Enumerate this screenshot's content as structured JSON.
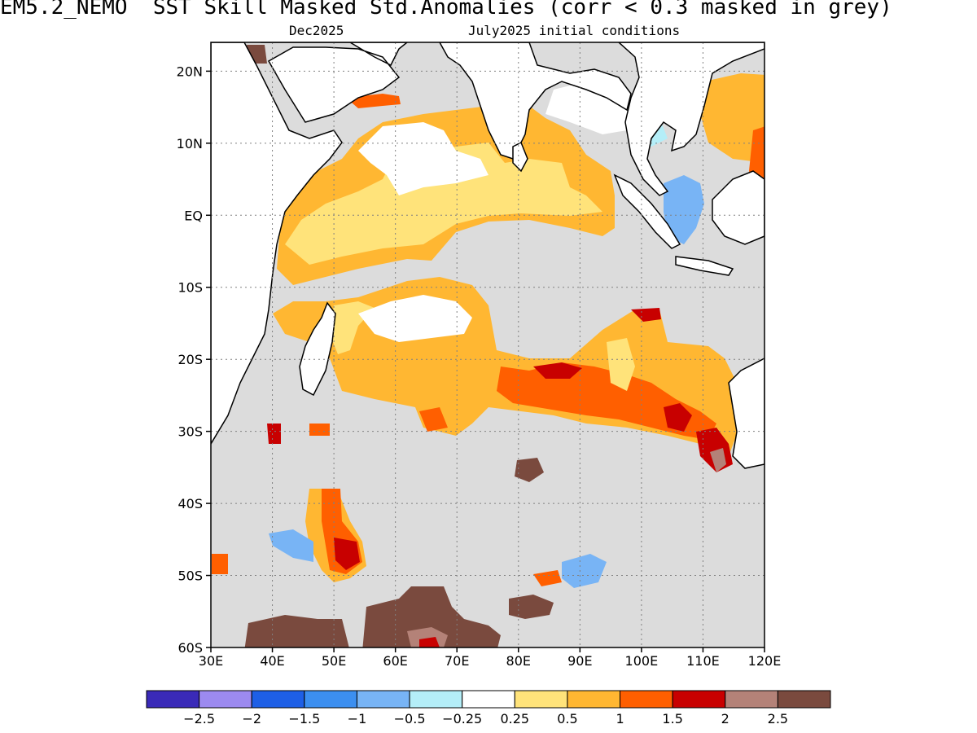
{
  "title": "EM5.2_NEMO  SST Skill Masked Std.Anomalies (corr < 0.3 masked in grey)",
  "subtitle_left": "Dec2025",
  "subtitle_right": "July2025 initial conditions",
  "map": {
    "lon_range": [
      30,
      120
    ],
    "lat_range": [
      -60,
      24
    ],
    "mask_color": "#dcdcdc",
    "coast_color": "#000000",
    "lat_ticks": [
      {
        "value": 20,
        "label": "20N"
      },
      {
        "value": 10,
        "label": "10N"
      },
      {
        "value": 0,
        "label": "EQ"
      },
      {
        "value": -10,
        "label": "10S"
      },
      {
        "value": -20,
        "label": "20S"
      },
      {
        "value": -30,
        "label": "30S"
      },
      {
        "value": -40,
        "label": "40S"
      },
      {
        "value": -50,
        "label": "50S"
      },
      {
        "value": -60,
        "label": "60S"
      }
    ],
    "lon_ticks": [
      {
        "value": 30,
        "label": "30E"
      },
      {
        "value": 40,
        "label": "40E"
      },
      {
        "value": 50,
        "label": "50E"
      },
      {
        "value": 60,
        "label": "60E"
      },
      {
        "value": 70,
        "label": "70E"
      },
      {
        "value": 80,
        "label": "80E"
      },
      {
        "value": 90,
        "label": "90E"
      },
      {
        "value": 100,
        "label": "100E"
      },
      {
        "value": 110,
        "label": "110E"
      },
      {
        "value": 120,
        "label": "120E"
      }
    ]
  },
  "colorbar": {
    "colors": [
      "#3a2ab8",
      "#9c8af0",
      "#1e5fe6",
      "#3c8ff0",
      "#78b4f5",
      "#b4eef8",
      "#ffffff",
      "#ffe37a",
      "#ffb732",
      "#ff5f00",
      "#c80000",
      "#b48278",
      "#7a4a3e"
    ],
    "labels": [
      "−2.5",
      "−2",
      "−1.5",
      "−1",
      "−0.5",
      "−0.25",
      "0.25",
      "0.5",
      "1",
      "1.5",
      "2",
      "2.5"
    ]
  }
}
